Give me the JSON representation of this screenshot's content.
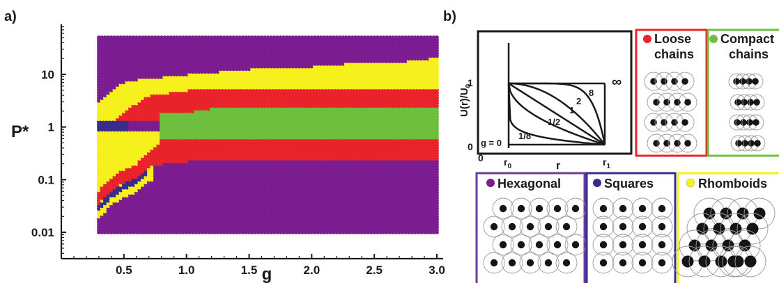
{
  "panel_a": {
    "label": "a)",
    "chart_data": {
      "type": "scatter",
      "title": "",
      "xlabel": "g",
      "ylabel": "P*",
      "xlim": [
        0.0,
        3.05
      ],
      "ylog": true,
      "ylim_log10": [
        -2.5,
        1.95
      ],
      "xticks": [
        0.5,
        1.0,
        1.5,
        2.0,
        2.5,
        3.0
      ],
      "xtick_labels": [
        "0.5",
        "1.0",
        "1.5",
        "2.0",
        "2.5",
        "3.0"
      ],
      "yticks": [
        0.01,
        0.1,
        1,
        10
      ],
      "ytick_labels": [
        "0.01",
        "0.1",
        "1",
        "10"
      ],
      "grid": false,
      "g_range": [
        0.3,
        3.0
      ],
      "g_step": 0.025,
      "log10_P_range": [
        -2.0,
        1.7
      ],
      "log10_P_step": 0.05,
      "phases": [
        "Hexagonal",
        "Squares",
        "Rhomboids",
        "Loose chains",
        "Compact chains"
      ],
      "colors": {
        "Hexagonal": "#7b1d91",
        "Squares": "#352c8c",
        "Rhomboids": "#f6f01c",
        "Loose chains": "#e8242a",
        "Compact chains": "#6fbf3f"
      },
      "phase_boundaries_log10P": {
        "description": "approximate phase map read off the figure: below lower red band = Hexagonal, red bands = Loose chains, middle = Compact chains, upper yellow band = Rhomboids, above = Hexagonal",
        "g": [
          0.3,
          0.4,
          0.5,
          0.6,
          0.7,
          0.8,
          0.9,
          1.0,
          1.25,
          1.5,
          1.75,
          2.0,
          2.25,
          2.5,
          2.75,
          3.0
        ],
        "lower_red_bottom": [
          -1.45,
          -1.2,
          -1.05,
          -0.95,
          -0.75,
          -0.7,
          -0.67,
          -0.65,
          -0.63,
          -0.62,
          -0.61,
          -0.6,
          -0.6,
          -0.6,
          -0.6,
          -0.6
        ],
        "lower_red_top": [
          -1.2,
          -0.95,
          -0.8,
          -0.7,
          -0.45,
          -0.3,
          -0.27,
          -0.27,
          -0.27,
          -0.27,
          -0.27,
          -0.27,
          -0.27,
          -0.27,
          -0.27,
          -0.27
        ],
        "green_bottom": [
          0.05,
          0.05,
          0.05,
          0.05,
          0.05,
          -0.2,
          -0.22,
          -0.22,
          -0.22,
          -0.22,
          -0.22,
          -0.22,
          -0.22,
          -0.22,
          -0.22,
          -0.22
        ],
        "green_top": [
          0.05,
          0.05,
          0.05,
          0.05,
          0.05,
          0.28,
          0.28,
          0.28,
          0.38,
          0.38,
          0.38,
          0.38,
          0.38,
          0.38,
          0.38,
          0.38
        ],
        "upper_red_top": [
          0.05,
          0.05,
          0.3,
          0.45,
          0.6,
          0.62,
          0.67,
          0.7,
          0.72,
          0.72,
          0.72,
          0.72,
          0.72,
          0.72,
          0.72,
          0.72
        ],
        "rhomboid_top": [
          0.5,
          0.7,
          0.85,
          0.9,
          0.92,
          0.95,
          0.97,
          1.0,
          1.05,
          1.1,
          1.12,
          1.15,
          1.2,
          1.22,
          1.25,
          1.32
        ]
      }
    }
  },
  "panel_b": {
    "label": "b)",
    "potential_plot": {
      "ylabel": "U(r)/U",
      "ylabel_sub": "0",
      "xlabel": "r",
      "y_tick_1": "1",
      "y_tick_0": "0",
      "x_tick_0": "0",
      "x_tick_r0": "r",
      "x_tick_r0_sub": "0",
      "x_tick_r1": "r",
      "x_tick_r1_sub": "1",
      "curve_labels": [
        "g = 0",
        "1/8",
        "1/2",
        "1",
        "2",
        "8",
        "∞"
      ],
      "g_values": [
        0.125,
        0.5,
        1,
        2,
        8
      ]
    },
    "phase_boxes": [
      {
        "name": "Loose chains",
        "line1": "Loose",
        "line2": "chains",
        "border": "#e8242a",
        "dot": "#e8242a"
      },
      {
        "name": "Compact chains",
        "line1": "Compact",
        "line2": "chains",
        "border": "#6fbf3f",
        "dot": "#6fbf3f"
      },
      {
        "name": "Hexagonal",
        "line1": "Hexagonal",
        "line2": "",
        "border": "#6a3d9a",
        "dot": "#7b1d91"
      },
      {
        "name": "Squares",
        "line1": "Squares",
        "line2": "",
        "border": "#352c8c",
        "dot": "#352c8c"
      },
      {
        "name": "Rhomboids",
        "line1": "Rhomboids",
        "line2": "",
        "border": "#f6f01c",
        "dot": "#f6f01c"
      }
    ]
  }
}
